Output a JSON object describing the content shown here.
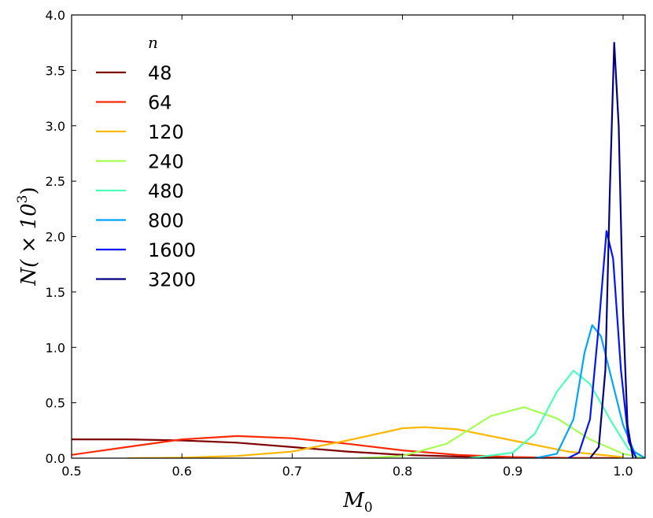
{
  "chart_data": {
    "type": "line",
    "title": "",
    "xlabel": "M",
    "xlabel_sub": "0",
    "ylabel": "N( × 10",
    "ylabel_sup": "3",
    "ylabel_close": ")",
    "xlim": [
      0.5,
      1.02
    ],
    "ylim": [
      0,
      4.0
    ],
    "x_ticks": [
      0.5,
      0.6,
      0.7,
      0.8,
      0.9,
      1.0
    ],
    "x_tick_labels": [
      "0.5",
      "0.6",
      "0.7",
      "0.8",
      "0.9",
      "1.0"
    ],
    "y_ticks": [
      0,
      0.5,
      1.0,
      1.5,
      2.0,
      2.5,
      3.0,
      3.5,
      4.0
    ],
    "y_tick_labels": [
      "0.0",
      "0.5",
      "1.0",
      "1.5",
      "2.0",
      "2.5",
      "3.0",
      "3.5",
      "4.0"
    ],
    "grid": false,
    "legend": {
      "title": "n",
      "position": "top-left"
    },
    "series": [
      {
        "name": "48",
        "color": "#7f0000",
        "x": [
          0.5,
          0.55,
          0.6,
          0.65,
          0.7,
          0.75,
          0.8,
          0.85,
          0.9,
          0.95,
          1.0
        ],
        "y": [
          0.17,
          0.17,
          0.16,
          0.14,
          0.1,
          0.06,
          0.03,
          0.015,
          0.007,
          0.002,
          0.0
        ]
      },
      {
        "name": "64",
        "color": "#ff2a00",
        "x": [
          0.5,
          0.55,
          0.6,
          0.65,
          0.7,
          0.75,
          0.8,
          0.85,
          0.9,
          0.95,
          1.0
        ],
        "y": [
          0.03,
          0.1,
          0.17,
          0.2,
          0.18,
          0.13,
          0.07,
          0.03,
          0.01,
          0.003,
          0.0
        ]
      },
      {
        "name": "120",
        "color": "#ffb700",
        "x": [
          0.55,
          0.6,
          0.65,
          0.7,
          0.75,
          0.8,
          0.82,
          0.85,
          0.9,
          0.95,
          1.0
        ],
        "y": [
          0.0,
          0.005,
          0.02,
          0.06,
          0.16,
          0.27,
          0.28,
          0.26,
          0.16,
          0.06,
          0.01
        ]
      },
      {
        "name": "240",
        "color": "#a5ff52",
        "x": [
          0.76,
          0.8,
          0.84,
          0.88,
          0.91,
          0.94,
          0.97,
          1.0,
          1.02
        ],
        "y": [
          0.0,
          0.02,
          0.13,
          0.38,
          0.46,
          0.36,
          0.17,
          0.04,
          0.0
        ]
      },
      {
        "name": "480",
        "color": "#4dffb8",
        "x": [
          0.86,
          0.9,
          0.92,
          0.94,
          0.955,
          0.97,
          0.99,
          1.005,
          1.02
        ],
        "y": [
          0.0,
          0.05,
          0.22,
          0.6,
          0.79,
          0.67,
          0.32,
          0.08,
          0.0
        ]
      },
      {
        "name": "800",
        "color": "#00a4ff",
        "x": [
          0.92,
          0.94,
          0.955,
          0.965,
          0.972,
          0.98,
          0.99,
          1.0,
          1.01,
          1.02
        ],
        "y": [
          0.0,
          0.04,
          0.35,
          0.95,
          1.2,
          1.1,
          0.7,
          0.3,
          0.06,
          0.0
        ]
      },
      {
        "name": "1600",
        "color": "#0014ff",
        "x": [
          0.95,
          0.96,
          0.97,
          0.978,
          0.985,
          0.991,
          0.998,
          1.005,
          1.012
        ],
        "y": [
          0.0,
          0.05,
          0.35,
          1.2,
          2.05,
          1.8,
          0.8,
          0.15,
          0.0
        ]
      },
      {
        "name": "3200",
        "color": "#000080",
        "x": [
          0.97,
          0.978,
          0.984,
          0.988,
          0.992,
          0.996,
          1.0,
          1.004,
          1.009
        ],
        "y": [
          0.0,
          0.1,
          0.8,
          2.4,
          3.75,
          3.0,
          1.3,
          0.3,
          0.0
        ]
      }
    ]
  }
}
